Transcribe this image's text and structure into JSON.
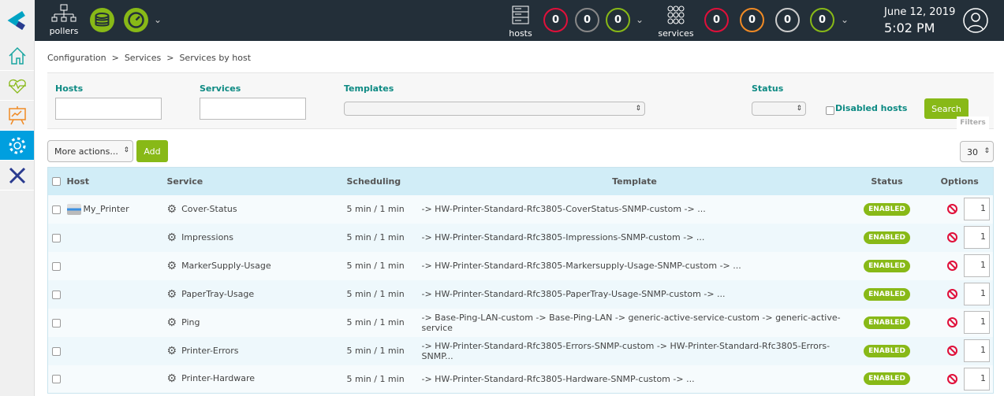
{
  "topbar": {
    "pollers_label": "pollers",
    "hosts_label": "hosts",
    "host_counts": [
      {
        "value": "0",
        "color": "#e0103a"
      },
      {
        "value": "0",
        "color": "#888888"
      },
      {
        "value": "0",
        "color": "#88b917"
      }
    ],
    "services_label": "services",
    "service_counts": [
      {
        "value": "0",
        "color": "#e0103a"
      },
      {
        "value": "0",
        "color": "#f08a24"
      },
      {
        "value": "0",
        "color": "#cccccc"
      },
      {
        "value": "0",
        "color": "#88b917"
      }
    ],
    "date": "June 12, 2019",
    "time": "5:02 PM"
  },
  "sidebar": {
    "items": [
      "home",
      "monitoring",
      "reporting",
      "configuration",
      "administration"
    ]
  },
  "breadcrumb": [
    "Configuration",
    ">",
    "Services",
    ">",
    "Services by host"
  ],
  "filters": {
    "hosts_label": "Hosts",
    "hosts_value": "",
    "services_label": "Services",
    "services_value": "",
    "templates_label": "Templates",
    "templates_value": "",
    "status_label": "Status",
    "status_value": "",
    "disabled_hosts_label": "Disabled hosts",
    "search_label": "Search",
    "filters_tab": "Filters"
  },
  "actions": {
    "more_actions": "More actions...",
    "add": "Add",
    "page_size": "30"
  },
  "table": {
    "headers": {
      "host": "Host",
      "service": "Service",
      "scheduling": "Scheduling",
      "template": "Template",
      "status": "Status",
      "options": "Options"
    },
    "rows": [
      {
        "host": "My_Printer",
        "service": "Cover-Status",
        "scheduling": "5 min / 1 min",
        "template": "-> HW-Printer-Standard-Rfc3805-CoverStatus-SNMP-custom -> ...",
        "status": "ENABLED",
        "option": "1"
      },
      {
        "host": "",
        "service": "Impressions",
        "scheduling": "5 min / 1 min",
        "template": "-> HW-Printer-Standard-Rfc3805-Impressions-SNMP-custom -> ...",
        "status": "ENABLED",
        "option": "1"
      },
      {
        "host": "",
        "service": "MarkerSupply-Usage",
        "scheduling": "5 min / 1 min",
        "template": "-> HW-Printer-Standard-Rfc3805-Markersupply-Usage-SNMP-custom -> ...",
        "status": "ENABLED",
        "option": "1"
      },
      {
        "host": "",
        "service": "PaperTray-Usage",
        "scheduling": "5 min / 1 min",
        "template": "-> HW-Printer-Standard-Rfc3805-PaperTray-Usage-SNMP-custom -> ...",
        "status": "ENABLED",
        "option": "1"
      },
      {
        "host": "",
        "service": "Ping",
        "scheduling": "5 min / 1 min",
        "template": "-> Base-Ping-LAN-custom -> Base-Ping-LAN -> generic-active-service-custom -> generic-active-service",
        "status": "ENABLED",
        "option": "1"
      },
      {
        "host": "",
        "service": "Printer-Errors",
        "scheduling": "5 min / 1 min",
        "template": "-> HW-Printer-Standard-Rfc3805-Errors-SNMP-custom -> HW-Printer-Standard-Rfc3805-Errors-SNMP...",
        "status": "ENABLED",
        "option": "1"
      },
      {
        "host": "",
        "service": "Printer-Hardware",
        "scheduling": "5 min / 1 min",
        "template": "-> HW-Printer-Standard-Rfc3805-Hardware-SNMP-custom -> ...",
        "status": "ENABLED",
        "option": "1"
      }
    ]
  }
}
